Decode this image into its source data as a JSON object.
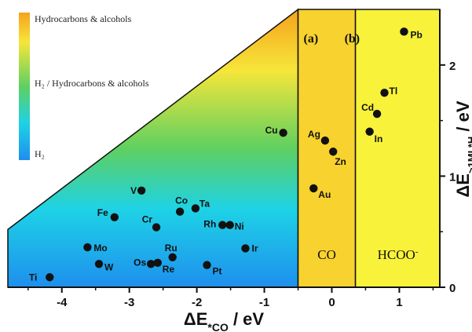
{
  "chart_data": {
    "type": "scatter",
    "xlabel_main": "ΔE",
    "xlabel_sub": "*CO",
    "xlabel_unit": " / eV",
    "ylabel_main": "ΔE",
    "ylabel_sub": ">1MI *H",
    "ylabel_unit": " / eV",
    "xlim": [
      -4.8,
      1.6
    ],
    "ylim": [
      0,
      2.5
    ],
    "x_ticks": [
      {
        "value": -4,
        "label": "-4"
      },
      {
        "value": -3,
        "label": "-3"
      },
      {
        "value": -2,
        "label": "-2"
      },
      {
        "value": -1,
        "label": "-1"
      },
      {
        "value": 0,
        "label": "0"
      },
      {
        "value": 1,
        "label": "1"
      }
    ],
    "y_ticks": [
      {
        "value": 0,
        "label": "0"
      },
      {
        "value": 1,
        "label": "1"
      },
      {
        "value": 2,
        "label": "2"
      }
    ],
    "region_boundaries": {
      "x1": -0.5,
      "x2": 0.35,
      "gradient_line_start_y": 0.52
    },
    "region_labels": {
      "a": "(a)",
      "b": "(b)",
      "co": "CO",
      "hcoo": "HCOO"
    },
    "legend": {
      "top": "Hydrocarbons & alcohols",
      "middle": "H₂ / Hydrocarbons & alcohols",
      "bottom": "H₂"
    },
    "colors": {
      "orange": "#f6a21c",
      "yellow": "#f6e63a",
      "green": "#5fd060",
      "cyan": "#1ed2e6",
      "blue": "#1e8fee",
      "co_region": "#f8d22e",
      "hcoo_region": "#f8f23a",
      "point": "#111111"
    },
    "points": [
      {
        "label": "Ti",
        "x": -4.18,
        "y": 0.09
      },
      {
        "label": "Mo",
        "x": -3.62,
        "y": 0.36
      },
      {
        "label": "W",
        "x": -3.45,
        "y": 0.21
      },
      {
        "label": "Fe",
        "x": -3.22,
        "y": 0.63
      },
      {
        "label": "V",
        "x": -2.82,
        "y": 0.87
      },
      {
        "label": "Cr",
        "x": -2.6,
        "y": 0.54
      },
      {
        "label": "Os",
        "x": -2.68,
        "y": 0.21
      },
      {
        "label": "Re",
        "x": -2.58,
        "y": 0.22
      },
      {
        "label": "Co",
        "x": -2.25,
        "y": 0.68
      },
      {
        "label": "Ru",
        "x": -2.36,
        "y": 0.27
      },
      {
        "label": "Ta",
        "x": -2.02,
        "y": 0.71
      },
      {
        "label": "Pt",
        "x": -1.85,
        "y": 0.2
      },
      {
        "label": "Rh",
        "x": -1.62,
        "y": 0.56
      },
      {
        "label": "Ni",
        "x": -1.51,
        "y": 0.56
      },
      {
        "label": "Ir",
        "x": -1.28,
        "y": 0.35
      },
      {
        "label": "Cu",
        "x": -0.72,
        "y": 1.39
      },
      {
        "label": "Ag",
        "x": -0.1,
        "y": 1.32
      },
      {
        "label": "Zn",
        "x": 0.02,
        "y": 1.22
      },
      {
        "label": "Au",
        "x": -0.27,
        "y": 0.89
      },
      {
        "label": "Cd",
        "x": 0.67,
        "y": 1.56
      },
      {
        "label": "In",
        "x": 0.56,
        "y": 1.4
      },
      {
        "label": "Tl",
        "x": 0.78,
        "y": 1.75
      },
      {
        "label": "Pb",
        "x": 1.07,
        "y": 2.3
      }
    ]
  }
}
